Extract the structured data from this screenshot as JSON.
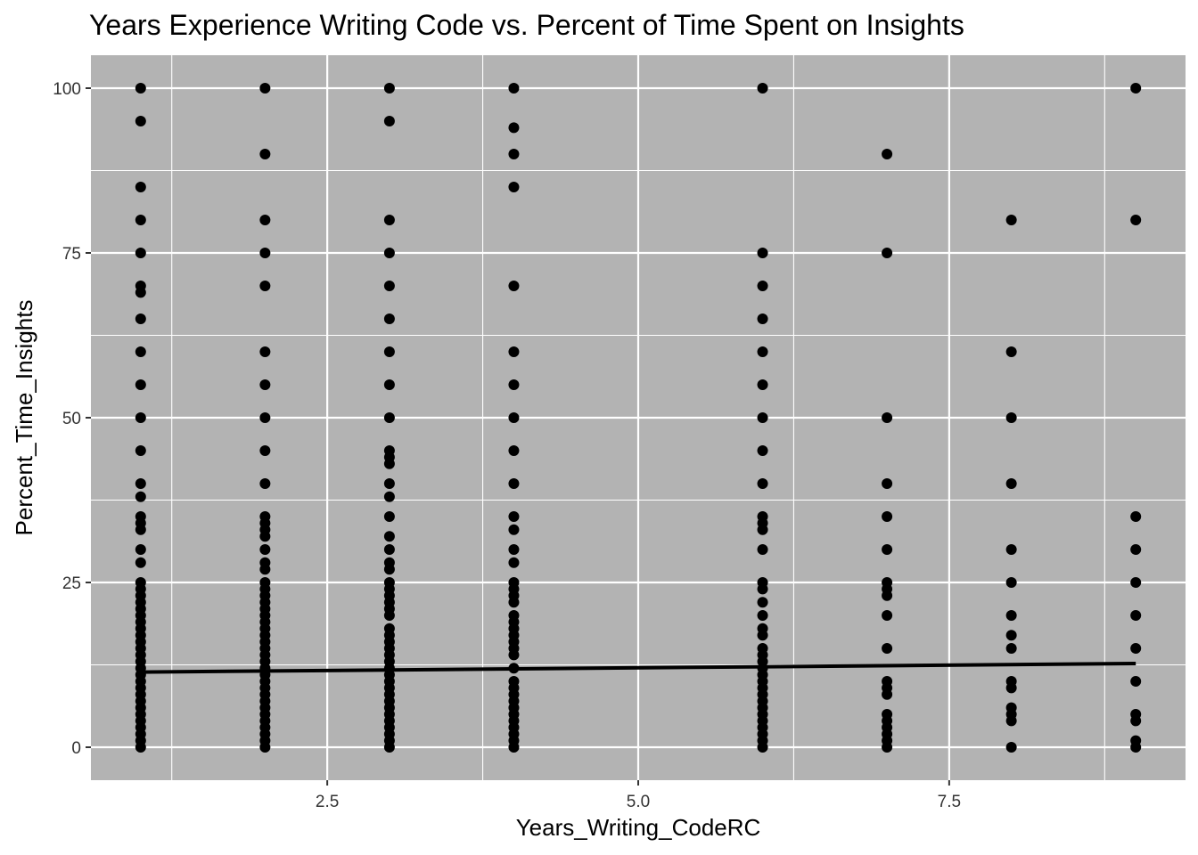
{
  "chart_data": {
    "type": "scatter",
    "title": "Years Experience Writing Code vs. Percent of Time Spent on Insights",
    "xlabel": "Years_Writing_CodeRC",
    "ylabel": "Percent_Time_Insights",
    "xlim": [
      0.6,
      9.4
    ],
    "ylim": [
      -5,
      105
    ],
    "x_ticks": [
      2.5,
      5.0,
      7.5
    ],
    "x_tick_labels": [
      "2.5",
      "5.0",
      "7.5"
    ],
    "y_ticks": [
      0,
      25,
      50,
      75,
      100
    ],
    "y_tick_labels": [
      "0",
      "25",
      "50",
      "75",
      "100"
    ],
    "grid": true,
    "legend": "none",
    "colors": {
      "panel": "#b3b3b3",
      "grid": "#ffffff",
      "point": "#000000",
      "line": "#000000"
    },
    "series": [
      {
        "points_by_x": [
          {
            "x": 1,
            "y": [
              100,
              95,
              85,
              80,
              75,
              70,
              69,
              65,
              60,
              55,
              50,
              45,
              40,
              38,
              35,
              34,
              33,
              30,
              28,
              25,
              24,
              23,
              22,
              21,
              20,
              19,
              18,
              17,
              16,
              15,
              14,
              13,
              12,
              11,
              10,
              9,
              8,
              7,
              6,
              5,
              4,
              3,
              2,
              1,
              0
            ]
          },
          {
            "x": 2,
            "y": [
              100,
              90,
              80,
              75,
              70,
              60,
              55,
              50,
              45,
              40,
              35,
              34,
              33,
              32,
              30,
              28,
              27,
              25,
              24,
              23,
              22,
              21,
              20,
              19,
              18,
              17,
              16,
              15,
              14,
              13,
              12,
              11,
              10,
              9,
              8,
              7,
              6,
              5,
              4,
              3,
              2,
              1,
              0
            ]
          },
          {
            "x": 3,
            "y": [
              100,
              95,
              80,
              75,
              70,
              65,
              60,
              55,
              50,
              45,
              44,
              43,
              40,
              38,
              35,
              32,
              30,
              28,
              27,
              25,
              24,
              23,
              22,
              21,
              20,
              18,
              17,
              16,
              15,
              14,
              13,
              12,
              11,
              10,
              9,
              8,
              7,
              6,
              5,
              4,
              3,
              2,
              1,
              0
            ]
          },
          {
            "x": 4,
            "y": [
              100,
              94,
              90,
              85,
              70,
              60,
              55,
              50,
              45,
              40,
              35,
              33,
              30,
              28,
              25,
              24,
              23,
              22,
              20,
              19,
              18,
              17,
              16,
              15,
              14,
              12,
              10,
              9,
              8,
              7,
              6,
              5,
              4,
              3,
              2,
              1,
              0
            ]
          },
          {
            "x": 6,
            "y": [
              100,
              75,
              70,
              65,
              60,
              55,
              50,
              45,
              40,
              35,
              34,
              33,
              30,
              25,
              24,
              22,
              20,
              18,
              17,
              15,
              14,
              13,
              12,
              11,
              10,
              9,
              8,
              7,
              6,
              5,
              4,
              3,
              2,
              1,
              0
            ]
          },
          {
            "x": 7,
            "y": [
              90,
              75,
              50,
              40,
              35,
              30,
              25,
              24,
              23,
              20,
              15,
              10,
              9,
              8,
              5,
              4,
              3,
              2,
              1,
              0
            ]
          },
          {
            "x": 8,
            "y": [
              80,
              60,
              50,
              40,
              30,
              25,
              20,
              17,
              15,
              10,
              9,
              6,
              5,
              4,
              0
            ]
          },
          {
            "x": 9,
            "y": [
              100,
              80,
              35,
              30,
              25,
              20,
              15,
              10,
              5,
              4,
              1,
              0
            ]
          }
        ]
      }
    ],
    "trend_line": {
      "x": [
        1,
        9
      ],
      "y": [
        11.4,
        12.7
      ]
    }
  }
}
